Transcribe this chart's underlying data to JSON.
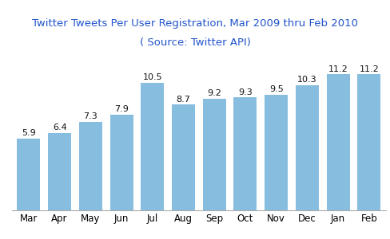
{
  "title_line1": "Twitter Tweets Per User Registration, Mar 2009 thru Feb 2010",
  "title_line2": "( Source: Twitter API)",
  "categories": [
    "Mar",
    "Apr",
    "May",
    "Jun",
    "Jul",
    "Aug",
    "Sep",
    "Oct",
    "Nov",
    "Dec",
    "Jan",
    "Feb"
  ],
  "values": [
    5.9,
    6.4,
    7.3,
    7.9,
    10.5,
    8.7,
    9.2,
    9.3,
    9.5,
    10.3,
    11.2,
    11.2
  ],
  "bar_color": "#87BEDF",
  "title_color": "#2255CC",
  "label_color": "#111111",
  "ylim": [
    0,
    13
  ],
  "title_fontsize": 9.5,
  "bar_label_fontsize": 8,
  "xtick_fontsize": 8.5,
  "background_color": "#ffffff"
}
